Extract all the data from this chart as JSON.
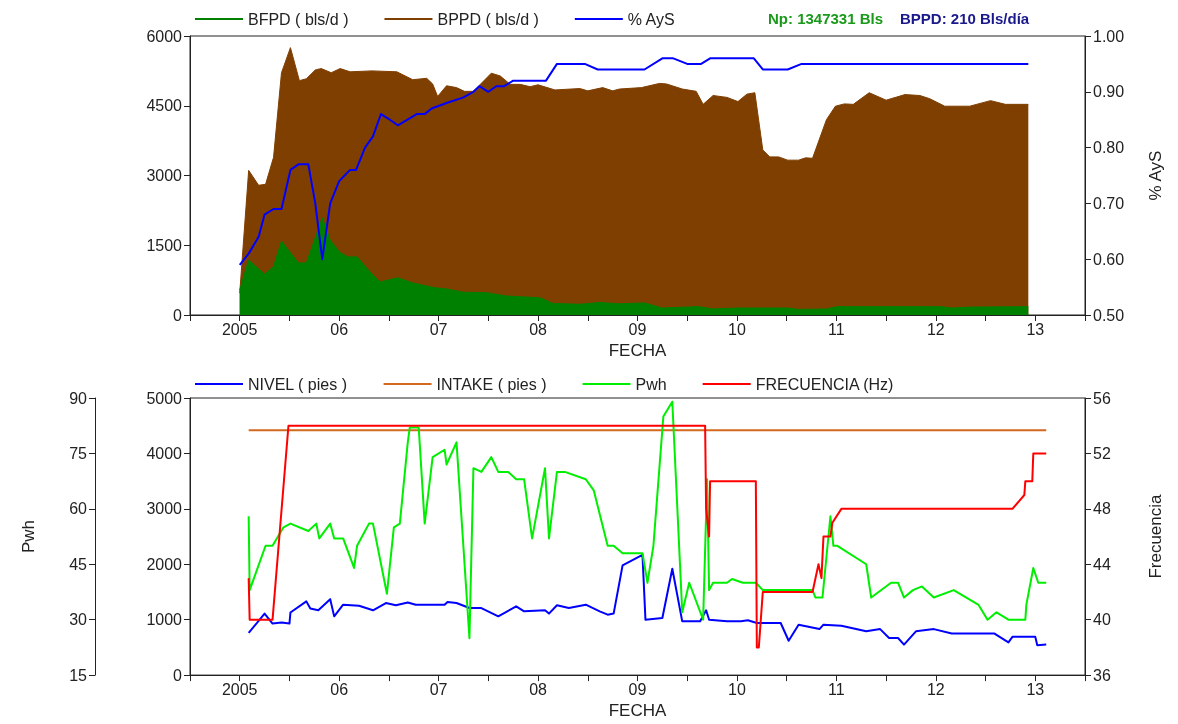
{
  "chart_data": [
    {
      "type": "area",
      "xlabel": "FECHA",
      "y2label": "% AyS",
      "legend": "top",
      "marker": "none",
      "grid": false,
      "xlim": [
        2004.5,
        2013.5
      ],
      "xticks": [
        {
          "value": 2004.5,
          "label": null
        },
        {
          "value": 2005,
          "label": "2005"
        },
        {
          "value": 2005.5,
          "label": null
        },
        {
          "value": 2006,
          "label": "06"
        },
        {
          "value": 2006.5,
          "label": null
        },
        {
          "value": 2007,
          "label": "07"
        },
        {
          "value": 2007.5,
          "label": null
        },
        {
          "value": 2008,
          "label": "08"
        },
        {
          "value": 2008.5,
          "label": null
        },
        {
          "value": 2009,
          "label": "09"
        },
        {
          "value": 2009.5,
          "label": null
        },
        {
          "value": 2010,
          "label": "10"
        },
        {
          "value": 2010.5,
          "label": null
        },
        {
          "value": 2011,
          "label": "11"
        },
        {
          "value": 2011.5,
          "label": null
        },
        {
          "value": 2012,
          "label": "12"
        },
        {
          "value": 2012.5,
          "label": null
        },
        {
          "value": 2013,
          "label": "13"
        },
        {
          "value": 2013.5,
          "label": null
        }
      ],
      "ylim": [
        0,
        6000
      ],
      "yticks": [
        0,
        1500,
        3000,
        4500,
        6000
      ],
      "y2lim": [
        0.5,
        1.0
      ],
      "y2ticks": [
        {
          "value": 0.5,
          "label": "0.50"
        },
        {
          "value": 0.6,
          "label": "0.60"
        },
        {
          "value": 0.7,
          "label": "0.70"
        },
        {
          "value": 0.8,
          "label": "0.80"
        },
        {
          "value": 0.9,
          "label": "0.90"
        },
        {
          "value": 1.0,
          "label": "1.00"
        }
      ],
      "annotations": [
        "Np: 1347331 Bls",
        "BPPD: 210 Bls/día"
      ],
      "series": [
        {
          "name": "BFPD ( bls/d )",
          "color": "#008000",
          "x": [
            2005.0,
            2005.09,
            2005.25,
            2005.34,
            2005.42,
            2005.59,
            2005.67,
            2005.83,
            2005.91,
            2006.01,
            2006.09,
            2006.18,
            2006.31,
            2006.41,
            2006.59,
            2006.74,
            2006.95,
            2007.08,
            2007.25,
            2007.48,
            2007.68,
            2008.02,
            2008.15,
            2008.42,
            2008.62,
            2008.82,
            2009.07,
            2009.25,
            2009.61,
            2009.76,
            2010.01,
            2010.51,
            2010.62,
            2010.9,
            2011.01,
            2012.05,
            2012.16,
            2012.34,
            2012.93
          ],
          "values": [
            540,
            1180,
            880,
            1040,
            1590,
            1120,
            1120,
            2090,
            1610,
            1340,
            1250,
            1250,
            930,
            710,
            800,
            690,
            590,
            560,
            490,
            480,
            410,
            370,
            250,
            230,
            270,
            240,
            260,
            150,
            180,
            130,
            150,
            150,
            120,
            130,
            180,
            180,
            150,
            170,
            180
          ]
        },
        {
          "name": "BPPD ( bls/d )",
          "color": "#7f3f00",
          "x": [
            2005.0,
            2005.09,
            2005.19,
            2005.26,
            2005.34,
            2005.42,
            2005.51,
            2005.6,
            2005.67,
            2005.76,
            2005.82,
            2005.92,
            2006.01,
            2006.11,
            2006.33,
            2006.58,
            2006.74,
            2006.88,
            2006.94,
            2006.99,
            2007.08,
            2007.18,
            2007.26,
            2007.35,
            2007.53,
            2007.62,
            2007.72,
            2007.82,
            2007.92,
            2008.0,
            2008.17,
            2008.42,
            2008.5,
            2008.65,
            2008.75,
            2008.82,
            2009.04,
            2009.22,
            2009.29,
            2009.45,
            2009.59,
            2009.66,
            2009.76,
            2009.9,
            2010.01,
            2010.1,
            2010.18,
            2010.26,
            2010.33,
            2010.42,
            2010.51,
            2010.62,
            2010.69,
            2010.76,
            2010.9,
            2010.99,
            2011.08,
            2011.17,
            2011.33,
            2011.5,
            2011.69,
            2011.84,
            2011.94,
            2012.09,
            2012.34,
            2012.55,
            2012.7,
            2012.93
          ],
          "values": [
            470,
            3110,
            2790,
            2810,
            3390,
            5210,
            5750,
            5040,
            5080,
            5270,
            5300,
            5210,
            5300,
            5230,
            5250,
            5230,
            5060,
            5090,
            4970,
            4700,
            4930,
            4890,
            4810,
            4810,
            5200,
            5140,
            4960,
            4960,
            4910,
            4950,
            4840,
            4870,
            4820,
            4890,
            4820,
            4860,
            4890,
            4980,
            4970,
            4860,
            4810,
            4530,
            4720,
            4680,
            4590,
            4750,
            4780,
            3550,
            3400,
            3400,
            3330,
            3330,
            3380,
            3370,
            4200,
            4490,
            4540,
            4530,
            4780,
            4620,
            4740,
            4720,
            4650,
            4490,
            4490,
            4610,
            4530,
            4530
          ]
        },
        {
          "name": "% AyS",
          "color": "#0000ff",
          "type": "line",
          "axis": "y2",
          "x": [
            2005.0,
            2005.09,
            2005.19,
            2005.25,
            2005.34,
            2005.42,
            2005.51,
            2005.59,
            2005.69,
            2005.76,
            2005.83,
            2005.91,
            2006.0,
            2006.11,
            2006.17,
            2006.26,
            2006.34,
            2006.42,
            2006.51,
            2006.59,
            2006.78,
            2006.86,
            2006.93,
            2007.08,
            2007.25,
            2007.35,
            2007.41,
            2007.5,
            2007.58,
            2007.66,
            2007.75,
            2008.08,
            2008.19,
            2008.35,
            2008.47,
            2008.6,
            2008.72,
            2009.07,
            2009.25,
            2009.36,
            2009.5,
            2009.64,
            2009.73,
            2009.9,
            2010.01,
            2010.06,
            2010.17,
            2010.26,
            2010.33,
            2010.51,
            2010.65,
            2010.97,
            2011.12,
            2011.33,
            2011.51,
            2012.05,
            2012.27,
            2012.41,
            2012.93
          ],
          "values": [
            0.59,
            0.61,
            0.64,
            0.68,
            0.69,
            0.69,
            0.76,
            0.77,
            0.77,
            0.7,
            0.6,
            0.7,
            0.74,
            0.76,
            0.76,
            0.8,
            0.82,
            0.86,
            0.85,
            0.84,
            0.86,
            0.86,
            0.87,
            0.88,
            0.89,
            0.9,
            0.91,
            0.9,
            0.91,
            0.91,
            0.92,
            0.92,
            0.95,
            0.95,
            0.95,
            0.94,
            0.94,
            0.94,
            0.96,
            0.96,
            0.95,
            0.95,
            0.96,
            0.96,
            0.96,
            0.96,
            0.96,
            0.94,
            0.94,
            0.94,
            0.95,
            0.95,
            0.95,
            0.95,
            0.95,
            0.95,
            0.95,
            0.95,
            0.95
          ]
        }
      ]
    },
    {
      "type": "line",
      "xlabel": "FECHA",
      "y2label": "Frecuencia",
      "y3label": "Pwh",
      "legend": "top",
      "marker": "none",
      "grid": false,
      "xlim": [
        2004.5,
        2013.5
      ],
      "xticks": [
        {
          "value": 2004.5,
          "label": null
        },
        {
          "value": 2005,
          "label": "2005"
        },
        {
          "value": 2005.5,
          "label": null
        },
        {
          "value": 2006,
          "label": "06"
        },
        {
          "value": 2006.5,
          "label": null
        },
        {
          "value": 2007,
          "label": "07"
        },
        {
          "value": 2007.5,
          "label": null
        },
        {
          "value": 2008,
          "label": "08"
        },
        {
          "value": 2008.5,
          "label": null
        },
        {
          "value": 2009,
          "label": "09"
        },
        {
          "value": 2009.5,
          "label": null
        },
        {
          "value": 2010,
          "label": "10"
        },
        {
          "value": 2010.5,
          "label": null
        },
        {
          "value": 2011,
          "label": "11"
        },
        {
          "value": 2011.5,
          "label": null
        },
        {
          "value": 2012,
          "label": "12"
        },
        {
          "value": 2012.5,
          "label": null
        },
        {
          "value": 2013,
          "label": "13"
        },
        {
          "value": 2013.5,
          "label": null
        }
      ],
      "ylim": [
        0,
        5000
      ],
      "yticks": [
        0,
        1000,
        2000,
        3000,
        4000,
        5000
      ],
      "y2lim": [
        36,
        56
      ],
      "y2ticks": [
        36,
        40,
        44,
        48,
        52,
        56
      ],
      "y3lim": [
        15,
        90
      ],
      "y3ticks": [
        15,
        30,
        45,
        60,
        75,
        90
      ],
      "series": [
        {
          "name": "NIVEL ( pies )",
          "color": "#0000ff",
          "x": [
            2005.09,
            2005.25,
            2005.33,
            2005.42,
            2005.5,
            2005.51,
            2005.67,
            2005.71,
            2005.79,
            2005.91,
            2005.95,
            2006.04,
            2006.2,
            2006.34,
            2006.47,
            2006.57,
            2006.69,
            2006.77,
            2007.06,
            2007.09,
            2007.18,
            2007.31,
            2007.43,
            2007.6,
            2007.78,
            2007.86,
            2008.07,
            2008.11,
            2008.19,
            2008.31,
            2008.48,
            2008.62,
            2008.7,
            2008.76,
            2008.85,
            2009.05,
            2009.08,
            2009.25,
            2009.35,
            2009.45,
            2009.63,
            2009.69,
            2009.72,
            2009.9,
            2010.04,
            2010.11,
            2010.2,
            2010.44,
            2010.52,
            2010.62,
            2010.83,
            2010.87,
            2011.05,
            2011.3,
            2011.44,
            2011.53,
            2011.62,
            2011.68,
            2011.8,
            2011.98,
            2012.16,
            2012.59,
            2012.73,
            2012.77,
            2013.0,
            2013.02,
            2013.11
          ],
          "values": [
            760,
            1110,
            930,
            950,
            930,
            1130,
            1330,
            1200,
            1170,
            1370,
            1060,
            1270,
            1250,
            1170,
            1300,
            1260,
            1310,
            1270,
            1270,
            1320,
            1300,
            1210,
            1210,
            1060,
            1240,
            1150,
            1170,
            1110,
            1260,
            1210,
            1270,
            1150,
            1090,
            1110,
            1980,
            2170,
            1000,
            1030,
            1920,
            970,
            970,
            1170,
            1000,
            970,
            970,
            990,
            940,
            940,
            620,
            910,
            830,
            910,
            890,
            790,
            830,
            670,
            670,
            550,
            790,
            830,
            750,
            750,
            590,
            690,
            690,
            540,
            550
          ]
        },
        {
          "name": "INTAKE ( pies )",
          "color": "#d2691e",
          "x": [
            2005.09,
            2013.11
          ],
          "values": [
            4420,
            4420
          ]
        },
        {
          "name": "Pwh",
          "color": "#00ee00",
          "axis": "y3",
          "x": [
            2005.09,
            2005.1,
            2005.26,
            2005.33,
            2005.44,
            2005.51,
            2005.69,
            2005.77,
            2005.8,
            2005.91,
            2005.95,
            2006.04,
            2006.15,
            2006.18,
            2006.3,
            2006.34,
            2006.48,
            2006.55,
            2006.61,
            2006.69,
            2006.71,
            2006.8,
            2006.86,
            2006.94,
            2007.06,
            2007.08,
            2007.18,
            2007.31,
            2007.35,
            2007.43,
            2007.53,
            2007.6,
            2007.7,
            2007.78,
            2007.86,
            2007.94,
            2008.07,
            2008.11,
            2008.19,
            2008.27,
            2008.48,
            2008.56,
            2008.7,
            2008.76,
            2008.85,
            2009.05,
            2009.1,
            2009.16,
            2009.26,
            2009.35,
            2009.45,
            2009.52,
            2009.66,
            2009.7,
            2009.72,
            2009.76,
            2009.9,
            2009.95,
            2010.06,
            2010.19,
            2010.26,
            2010.76,
            2010.79,
            2010.86,
            2010.94,
            2010.97,
            2011.01,
            2011.3,
            2011.35,
            2011.55,
            2011.62,
            2011.68,
            2011.77,
            2011.86,
            2011.98,
            2012.18,
            2012.43,
            2012.52,
            2012.61,
            2012.73,
            2012.9,
            2012.91,
            2012.98,
            2013.03,
            2013.11
          ],
          "values": [
            58,
            38,
            50,
            50,
            55,
            56,
            54,
            56,
            52,
            56,
            52,
            52,
            44,
            50,
            56,
            56,
            37,
            55,
            56,
            78,
            82,
            82,
            56,
            74,
            76,
            72,
            78,
            25,
            71,
            70,
            74,
            70,
            70,
            68,
            68,
            52,
            71,
            52,
            70,
            70,
            68,
            65,
            50,
            50,
            48,
            48,
            40,
            50,
            85,
            89,
            32,
            40,
            30,
            68,
            38,
            40,
            40,
            41,
            40,
            40,
            38,
            38,
            36,
            36,
            58,
            50,
            50,
            45,
            36,
            40,
            40,
            36,
            38,
            39,
            36,
            38,
            34,
            30,
            32,
            30,
            30,
            34,
            44,
            40,
            40
          ]
        },
        {
          "name": "FRECUENCIA (Hz)",
          "color": "#ff0000",
          "axis": "y2",
          "x": [
            2005.09,
            2005.1,
            2005.33,
            2005.49,
            2009.68,
            2009.69,
            2009.72,
            2009.73,
            2010.19,
            2010.2,
            2010.22,
            2010.26,
            2010.29,
            2010.76,
            2010.82,
            2010.85,
            2010.87,
            2010.94,
            2010.96,
            2011.05,
            2012.77,
            2012.89,
            2012.9,
            2012.97,
            2012.98,
            2013.11
          ],
          "values": [
            43,
            40,
            40,
            54,
            54,
            48,
            46,
            50,
            50,
            38,
            38,
            42,
            42,
            42,
            44,
            43,
            46,
            46,
            47,
            48,
            48,
            49,
            50,
            50,
            52,
            52
          ]
        }
      ]
    }
  ]
}
